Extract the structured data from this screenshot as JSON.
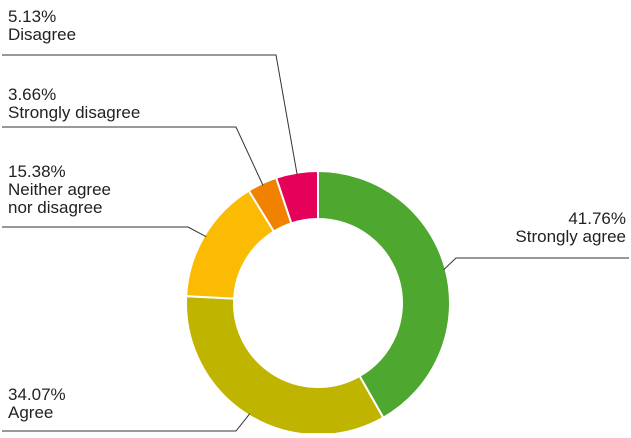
{
  "chart_data": {
    "type": "pie",
    "title": "",
    "donut": true,
    "slices": [
      {
        "label": "Strongly agree",
        "value": 41.76,
        "value_label": "41.76%",
        "color": "#4ea72e"
      },
      {
        "label": "Agree",
        "value": 34.07,
        "value_label": "34.07%",
        "color": "#bfb500"
      },
      {
        "label": "Neither agree nor disagree",
        "label_lines": [
          "Neither agree",
          "nor disagree"
        ],
        "value": 15.38,
        "value_label": "15.38%",
        "color": "#fbbb03"
      },
      {
        "label": "Strongly disagree",
        "value": 3.66,
        "value_label": "3.66%",
        "color": "#f08200"
      },
      {
        "label": "Disagree",
        "value": 5.13,
        "value_label": "5.13%",
        "color": "#e5005a"
      }
    ]
  }
}
